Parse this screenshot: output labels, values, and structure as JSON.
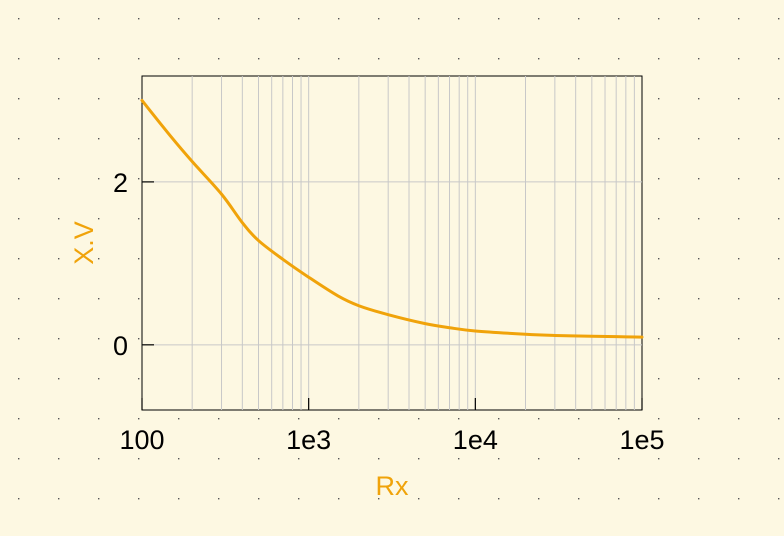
{
  "chart_data": {
    "type": "line",
    "xscale": "log",
    "xlim": [
      100,
      100000
    ],
    "ylim": [
      -0.8,
      3.3
    ],
    "xlabel": "Rx",
    "ylabel": "X.V",
    "xticks": [
      {
        "value": 100,
        "label": "100"
      },
      {
        "value": 1000,
        "label": "1e3"
      },
      {
        "value": 10000,
        "label": "1e4"
      },
      {
        "value": 100000,
        "label": "1e5"
      }
    ],
    "yticks": [
      {
        "value": 0,
        "label": "0"
      },
      {
        "value": 2,
        "label": "2"
      }
    ],
    "grid": true,
    "series": [
      {
        "color": "#f0a30a",
        "x": [
          100,
          150,
          200,
          300,
          400,
          500,
          700,
          1000,
          1500,
          2000,
          3000,
          5000,
          7000,
          10000,
          20000,
          30000,
          50000,
          70000,
          100000
        ],
        "y": [
          3.0,
          2.55,
          2.25,
          1.85,
          1.5,
          1.28,
          1.05,
          0.83,
          0.6,
          0.48,
          0.37,
          0.26,
          0.21,
          0.17,
          0.13,
          0.115,
          0.105,
          0.1,
          0.095
        ]
      }
    ]
  },
  "colors": {
    "background": "#fdf8e2",
    "plot_background": "#fdf8e2",
    "grid": "#c8c8c8",
    "axis": "#000000",
    "label": "#f0a30a",
    "tick_label": "#000000",
    "dots": "#555555"
  }
}
